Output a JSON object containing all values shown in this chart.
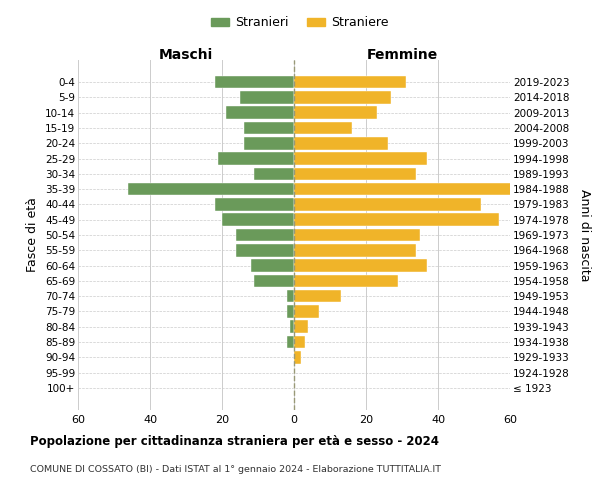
{
  "age_groups": [
    "100+",
    "95-99",
    "90-94",
    "85-89",
    "80-84",
    "75-79",
    "70-74",
    "65-69",
    "60-64",
    "55-59",
    "50-54",
    "45-49",
    "40-44",
    "35-39",
    "30-34",
    "25-29",
    "20-24",
    "15-19",
    "10-14",
    "5-9",
    "0-4"
  ],
  "birth_years": [
    "≤ 1923",
    "1924-1928",
    "1929-1933",
    "1934-1938",
    "1939-1943",
    "1944-1948",
    "1949-1953",
    "1954-1958",
    "1959-1963",
    "1964-1968",
    "1969-1973",
    "1974-1978",
    "1979-1983",
    "1984-1988",
    "1989-1993",
    "1994-1998",
    "1999-2003",
    "2004-2008",
    "2009-2013",
    "2014-2018",
    "2019-2023"
  ],
  "maschi": [
    0,
    0,
    0,
    2,
    1,
    2,
    2,
    11,
    12,
    16,
    16,
    20,
    22,
    46,
    11,
    21,
    14,
    14,
    19,
    15,
    22
  ],
  "femmine": [
    0,
    0,
    2,
    3,
    4,
    7,
    13,
    29,
    37,
    34,
    35,
    57,
    52,
    61,
    34,
    37,
    26,
    16,
    23,
    27,
    31
  ],
  "maschi_color": "#6a9a5a",
  "femmine_color": "#f0b429",
  "background_color": "#ffffff",
  "grid_color": "#cccccc",
  "title": "Popolazione per cittadinanza straniera per età e sesso - 2024",
  "subtitle": "COMUNE DI COSSATO (BI) - Dati ISTAT al 1° gennaio 2024 - Elaborazione TUTTITALIA.IT",
  "xlabel_left": "Maschi",
  "xlabel_right": "Femmine",
  "ylabel_left": "Fasce di età",
  "ylabel_right": "Anni di nascita",
  "xlim": 60,
  "legend_stranieri": "Stranieri",
  "legend_straniere": "Straniere"
}
